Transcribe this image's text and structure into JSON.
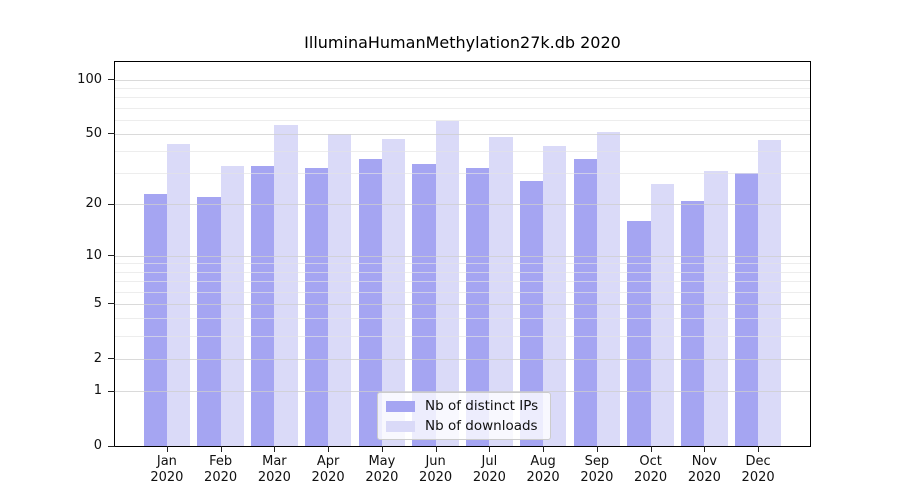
{
  "figure": {
    "title": "IlluminaHumanMethylation27k.db 2020"
  },
  "chart_data": {
    "type": "bar",
    "title": "IlluminaHumanMethylation27k.db 2020",
    "xlabel": "",
    "ylabel": "",
    "yscale": "log1p",
    "ylim": [
      0,
      125
    ],
    "grid": "horizontal",
    "legend_position": "lower center",
    "categories": [
      "Jan",
      "Feb",
      "Mar",
      "Apr",
      "May",
      "Jun",
      "Jul",
      "Aug",
      "Sep",
      "Oct",
      "Nov",
      "Dec"
    ],
    "category_year": "2020",
    "y_ticks": [
      0,
      1,
      2,
      5,
      10,
      20,
      50,
      100
    ],
    "y_minor_gridlines": [
      3,
      4,
      6,
      7,
      8,
      9,
      30,
      40,
      60,
      70,
      80,
      90
    ],
    "series": [
      {
        "name": "Nb of distinct IPs",
        "color": "#a5a5f2",
        "values": [
          23,
          22,
          33,
          32,
          36,
          34,
          32,
          27,
          36,
          16,
          21,
          30
        ]
      },
      {
        "name": "Nb of downloads",
        "color": "#dadaf8",
        "values": [
          44,
          33,
          56,
          50,
          47,
          59,
          48,
          43,
          51,
          26,
          31,
          46
        ]
      }
    ]
  }
}
